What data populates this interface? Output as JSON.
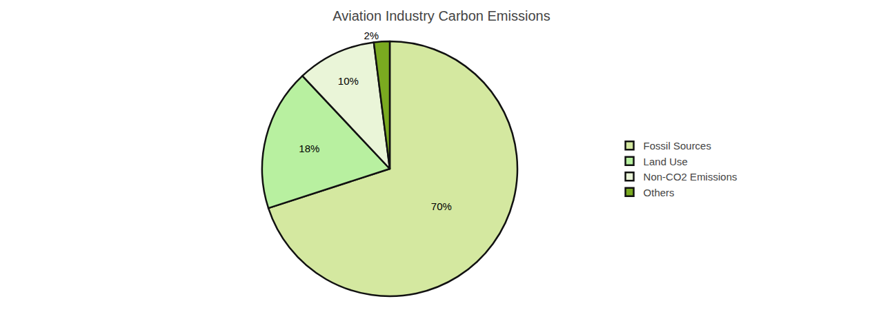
{
  "chart_data": {
    "type": "pie",
    "title": "Aviation Industry Carbon Emissions",
    "categories": [
      "Fossil Sources",
      "Land Use",
      "Non-CO2 Emissions",
      "Others"
    ],
    "values": [
      70,
      18,
      10,
      2
    ],
    "value_labels": [
      "70%",
      "18%",
      "10%",
      "2%"
    ],
    "colors": [
      "#d4e8a0",
      "#b8f0a0",
      "#eaf5d8",
      "#7aaa20"
    ],
    "data_labels": true,
    "legend": "right"
  }
}
